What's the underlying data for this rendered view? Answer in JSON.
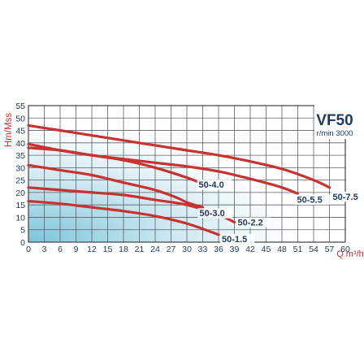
{
  "chart_data": {
    "type": "line",
    "title": "VF50",
    "subtitle": "r/min 3000",
    "xlabel": "Q m³/h",
    "ylabel": "Hm/Mss",
    "xlim": [
      0,
      60
    ],
    "ylim": [
      0,
      55
    ],
    "x_ticks": [
      "0",
      "3",
      "6",
      "9",
      "12",
      "15",
      "18",
      "21",
      "24",
      "27",
      "30",
      "33",
      "36",
      "39",
      "42",
      "45",
      "48",
      "51",
      "54",
      "57",
      "60"
    ],
    "y_ticks": [
      "0",
      "5",
      "10",
      "15",
      "20",
      "25",
      "30",
      "35",
      "40",
      "45",
      "50",
      "55"
    ],
    "grid": true,
    "series": [
      {
        "name": "50-7.5",
        "x": [
          0,
          6,
          12,
          18,
          24,
          30,
          36,
          42,
          48,
          54,
          57
        ],
        "y": [
          47,
          45,
          43,
          41,
          39,
          37,
          35,
          32.5,
          29.5,
          25,
          22
        ]
      },
      {
        "name": "50-5.5",
        "x": [
          0,
          6,
          12,
          18,
          24,
          30,
          36,
          42,
          48,
          51
        ],
        "y": [
          39.5,
          37,
          35,
          33.5,
          32,
          30.5,
          28.5,
          25.5,
          22,
          19.5
        ]
      },
      {
        "name": "50-4.0",
        "x": [
          0,
          6,
          12,
          18,
          24,
          30,
          33
        ],
        "y": [
          38,
          37,
          35,
          33,
          30,
          26,
          23.5
        ]
      },
      {
        "name": "50-3.0",
        "x": [
          0,
          6,
          12,
          18,
          24,
          28,
          30,
          33
        ],
        "y": [
          31,
          29,
          27,
          24,
          21,
          18,
          16,
          14
        ]
      },
      {
        "name": "50-2.2",
        "x": [
          0,
          6,
          12,
          18,
          24,
          30,
          36,
          39
        ],
        "y": [
          22,
          21,
          20,
          19,
          17,
          15,
          11,
          8
        ]
      },
      {
        "name": "50-1.5",
        "x": [
          0,
          6,
          12,
          18,
          24,
          30,
          36
        ],
        "y": [
          16.5,
          15.5,
          14,
          12.5,
          10.5,
          7.5,
          3
        ]
      }
    ],
    "colors": {
      "curve": "#c8322f",
      "text": "#1f3b62",
      "grid": "#5b6168",
      "fill_dark": "#7cc4da",
      "fill_light": "#ffffff"
    }
  }
}
